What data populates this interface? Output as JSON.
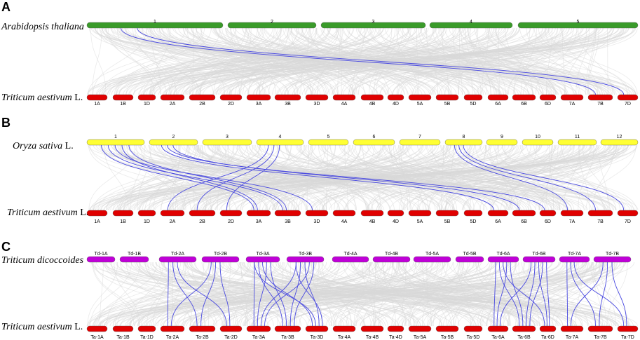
{
  "colors": {
    "background_links": "#d9d9d9",
    "highlight_links": "#4a4ae0",
    "arabidopsis": "#3a9b2a",
    "wheat": "#e00000",
    "rice": "#ffff33",
    "dicoccoides": "#c000d8"
  },
  "panels": [
    {
      "letter": "A",
      "top": {
        "species": "Arabidopsis thaliana",
        "suffix": "",
        "color_key": "arabidopsis",
        "chromosomes": [
          "1",
          "2",
          "3",
          "4",
          "5"
        ]
      },
      "bottom": {
        "species": "Triticum aestivum",
        "suffix": " L.",
        "color_key": "wheat",
        "chromosomes": [
          "1A",
          "1B",
          "1D",
          "2A",
          "2B",
          "2D",
          "3A",
          "3B",
          "3D",
          "4A",
          "4B",
          "4D",
          "5A",
          "5B",
          "5D",
          "6A",
          "6B",
          "6D",
          "7A",
          "7B",
          "7D"
        ]
      },
      "links": [
        {
          "from": "1",
          "to": "7B"
        },
        {
          "from": "1",
          "to": "7D"
        }
      ]
    },
    {
      "letter": "B",
      "top": {
        "species": "Oryza sativa",
        "suffix": " L.",
        "color_key": "rice",
        "chromosomes": [
          "1",
          "2",
          "3",
          "4",
          "5",
          "6",
          "7",
          "8",
          "9",
          "10",
          "11",
          "12"
        ]
      },
      "bottom": {
        "species": "Triticum aestivum",
        "suffix": " L.",
        "color_key": "wheat",
        "chromosomes": [
          "1A",
          "1B",
          "1D",
          "2A",
          "2B",
          "2D",
          "3A",
          "3B",
          "3D",
          "4A",
          "4B",
          "4D",
          "5A",
          "5B",
          "5D",
          "6A",
          "6B",
          "6D",
          "7A",
          "7B",
          "7D"
        ]
      },
      "links": [
        {
          "from": "1",
          "to": "3A"
        },
        {
          "from": "1",
          "to": "3B"
        },
        {
          "from": "1",
          "to": "3D"
        },
        {
          "from": "1",
          "to": "3A"
        },
        {
          "from": "1",
          "to": "3B"
        },
        {
          "from": "2",
          "to": "6A"
        },
        {
          "from": "2",
          "to": "6D"
        },
        {
          "from": "2",
          "to": "6B"
        },
        {
          "from": "4",
          "to": "2A"
        },
        {
          "from": "4",
          "to": "2B"
        },
        {
          "from": "4",
          "to": "2D"
        },
        {
          "from": "8",
          "to": "7A"
        },
        {
          "from": "8",
          "to": "7B"
        },
        {
          "from": "8",
          "to": "7D"
        }
      ]
    },
    {
      "letter": "C",
      "top": {
        "species": "Triticum dicoccoides",
        "suffix": "",
        "color_key": "dicoccoides",
        "chromosomes": [
          "Td-1A",
          "Td-1B",
          "Td-2A",
          "Td-2B",
          "Td-3A",
          "Td-3B",
          "Td-4A",
          "Td-4B",
          "Td-5A",
          "Td-5B",
          "Td-6A",
          "Td-6B",
          "Td-7A",
          "Td-7B"
        ]
      },
      "bottom": {
        "species": "Triticum aestivum",
        "suffix": " L.",
        "color_key": "wheat",
        "chromosomes": [
          "Ta-1A",
          "Ta-1B",
          "Ta-1D",
          "Ta-2A",
          "Ta-2B",
          "Ta-2D",
          "Ta-3A",
          "Ta-3B",
          "Ta-3D",
          "Ta-4A",
          "Ta-4B",
          "Ta-4D",
          "Ta-5A",
          "Ta-5B",
          "Ta-5D",
          "Ta-6A",
          "Ta-6B",
          "Ta-6D",
          "Ta-7A",
          "Ta-7B",
          "Ta-7D"
        ]
      },
      "links": [
        {
          "from": "Td-2A",
          "to": "Ta-2A"
        },
        {
          "from": "Td-2A",
          "to": "Ta-2B"
        },
        {
          "from": "Td-2A",
          "to": "Ta-2D"
        },
        {
          "from": "Td-2B",
          "to": "Ta-2A"
        },
        {
          "from": "Td-2B",
          "to": "Ta-2B"
        },
        {
          "from": "Td-2B",
          "to": "Ta-2D"
        },
        {
          "from": "Td-3A",
          "to": "Ta-3A"
        },
        {
          "from": "Td-3A",
          "to": "Ta-3B"
        },
        {
          "from": "Td-3A",
          "to": "Ta-3D"
        },
        {
          "from": "Td-3A",
          "to": "Ta-3A"
        },
        {
          "from": "Td-3A",
          "to": "Ta-3B"
        },
        {
          "from": "Td-3A",
          "to": "Ta-3D"
        },
        {
          "from": "Td-3B",
          "to": "Ta-3A"
        },
        {
          "from": "Td-3B",
          "to": "Ta-3B"
        },
        {
          "from": "Td-3B",
          "to": "Ta-3D"
        },
        {
          "from": "Td-3B",
          "to": "Ta-3A"
        },
        {
          "from": "Td-3B",
          "to": "Ta-3B"
        },
        {
          "from": "Td-3B",
          "to": "Ta-3D"
        },
        {
          "from": "Td-6A",
          "to": "Ta-6A"
        },
        {
          "from": "Td-6A",
          "to": "Ta-6B"
        },
        {
          "from": "Td-6A",
          "to": "Ta-6D"
        },
        {
          "from": "Td-6A",
          "to": "Ta-6A"
        },
        {
          "from": "Td-6A",
          "to": "Ta-6B"
        },
        {
          "from": "Td-6B",
          "to": "Ta-6A"
        },
        {
          "from": "Td-6B",
          "to": "Ta-6B"
        },
        {
          "from": "Td-6B",
          "to": "Ta-6D"
        },
        {
          "from": "Td-6B",
          "to": "Ta-6B"
        },
        {
          "from": "Td-6B",
          "to": "Ta-6D"
        },
        {
          "from": "Td-7A",
          "to": "Ta-7A"
        },
        {
          "from": "Td-7A",
          "to": "Ta-7B"
        },
        {
          "from": "Td-7A",
          "to": "Ta-7D"
        },
        {
          "from": "Td-7B",
          "to": "Ta-7A"
        },
        {
          "from": "Td-7B",
          "to": "Ta-7B"
        },
        {
          "from": "Td-7B",
          "to": "Ta-7D"
        }
      ]
    }
  ]
}
